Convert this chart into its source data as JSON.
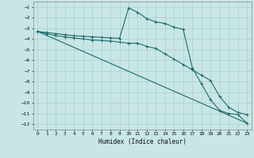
{
  "xlabel": "Humidex (Indice chaleur)",
  "xlim": [
    -0.5,
    23.5
  ],
  "ylim": [
    -12.5,
    -0.5
  ],
  "yticks": [
    -1,
    -2,
    -3,
    -4,
    -5,
    -6,
    -7,
    -8,
    -9,
    -10,
    -11,
    -12
  ],
  "xticks": [
    0,
    1,
    2,
    3,
    4,
    5,
    6,
    7,
    8,
    9,
    10,
    11,
    12,
    13,
    14,
    15,
    16,
    17,
    18,
    19,
    20,
    21,
    22,
    23
  ],
  "bg_color": "#c8e6e6",
  "line_color": "#1e6b6b",
  "grid_color": "#aacfcf",
  "line1_x": [
    0,
    1,
    2,
    3,
    4,
    5,
    6,
    7,
    8,
    9,
    10,
    11,
    12,
    13,
    14,
    15,
    16,
    17,
    18,
    19,
    20,
    21,
    22,
    23
  ],
  "line1_y": [
    -3.3,
    -3.4,
    -3.5,
    -3.6,
    -3.7,
    -3.75,
    -3.8,
    -3.85,
    -3.9,
    -3.95,
    -1.1,
    -1.5,
    -2.1,
    -2.4,
    -2.55,
    -2.9,
    -3.1,
    -6.7,
    -8.2,
    -9.7,
    -10.7,
    -11.0,
    -11.1,
    -11.9
  ],
  "line2_x": [
    0,
    1,
    2,
    3,
    4,
    5,
    6,
    7,
    8,
    9,
    10,
    11,
    12,
    13,
    14,
    15,
    16,
    17,
    18,
    19,
    20,
    21,
    22,
    23
  ],
  "line2_y": [
    -3.3,
    -3.5,
    -3.7,
    -3.8,
    -3.9,
    -4.0,
    -4.1,
    -4.15,
    -4.2,
    -4.3,
    -4.4,
    -4.4,
    -4.7,
    -4.9,
    -5.4,
    -5.9,
    -6.4,
    -6.9,
    -7.4,
    -7.9,
    -9.4,
    -10.4,
    -10.9,
    -11.1
  ],
  "line3_x": [
    0,
    23
  ],
  "line3_y": [
    -3.3,
    -11.9
  ]
}
